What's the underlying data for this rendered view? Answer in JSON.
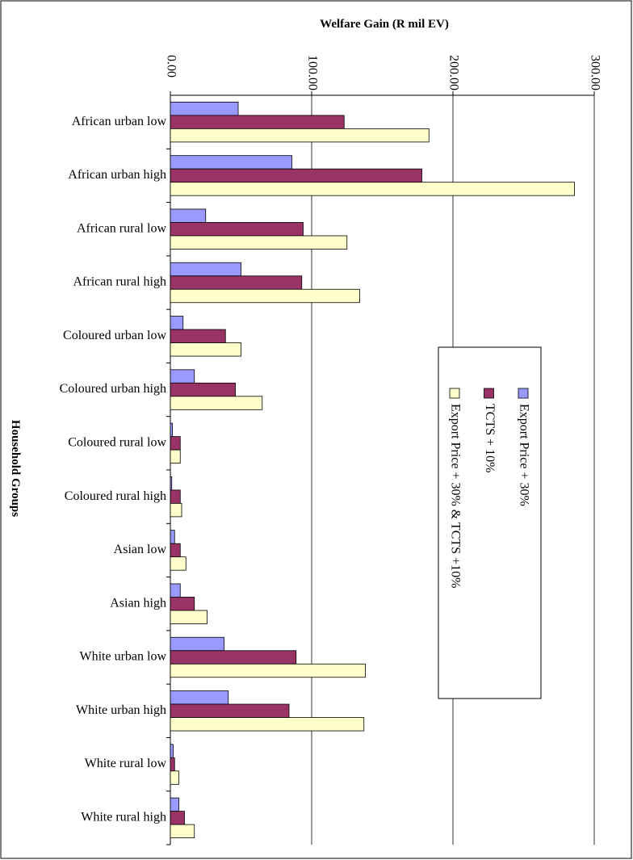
{
  "chart_data": {
    "type": "bar",
    "orientation": "horizontal",
    "title": "Welfare Gain (R mil EV)",
    "y_axis_label": "Household Groups",
    "categories": [
      "African urban low",
      "African urban high",
      "African rural low",
      "African rural high",
      "Coloured urban low",
      "Coloured urban high",
      "Coloured rural low",
      "Coloured rural high",
      "Asian low",
      "Asian high",
      "White urban low",
      "White urban high",
      "White rural low",
      "White rural high"
    ],
    "series": [
      {
        "name": "Export Price + 30%",
        "color": "#9999ff",
        "values": [
          48,
          86,
          25,
          50,
          9,
          17,
          1.5,
          1,
          3,
          7,
          38,
          41,
          2,
          6
        ]
      },
      {
        "name": "TCTS + 10%",
        "color": "#993366",
        "values": [
          123,
          178,
          94,
          93,
          39,
          46,
          7,
          7,
          7,
          17,
          89,
          84,
          3,
          10
        ]
      },
      {
        "name": "Export Price + 30% & TCTS +10%",
        "color": "#ffffcc",
        "values": [
          183,
          286,
          125,
          134,
          50,
          65,
          7,
          8,
          11,
          26,
          138,
          137,
          6,
          17
        ]
      }
    ],
    "xlim": [
      0,
      300
    ],
    "xticks": [
      {
        "value": 0,
        "label": "0.00"
      },
      {
        "value": 100,
        "label": "100.00"
      },
      {
        "value": 200,
        "label": "200.00"
      },
      {
        "value": 300,
        "label": "300.00"
      }
    ],
    "grid": true
  }
}
